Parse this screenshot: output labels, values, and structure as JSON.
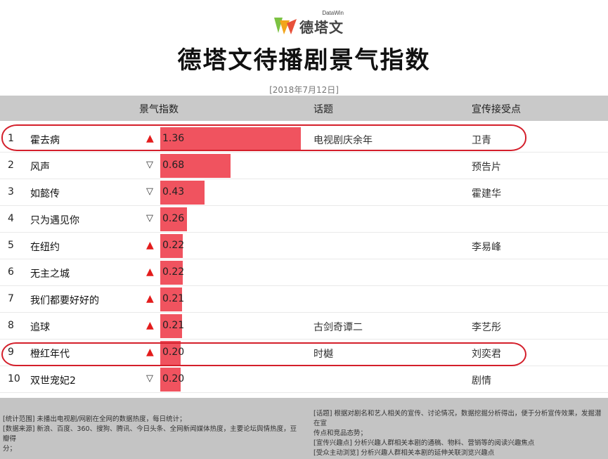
{
  "logo": {
    "brand": "德塔文",
    "sub": "DataWin"
  },
  "title": "德塔文待播剧景气指数",
  "date": "[2018年7月12日]",
  "headers": {
    "index": "景气指数",
    "topic": "话题",
    "promo": "宣传接受点"
  },
  "colors": {
    "bar": "#f0535f",
    "up_arrow": "#e31c1c",
    "highlight": "#d41f2b",
    "header_bg": "#c9c9c9",
    "footer_bg": "#c4c4c4"
  },
  "chart_data": {
    "type": "bar",
    "orientation": "horizontal",
    "categories": [
      "霍去病",
      "风声",
      "如懿传",
      "只为遇见你",
      "在纽约",
      "无主之城",
      "我们都要好好的",
      "追球",
      "橙红年代",
      "双世宠妃2"
    ],
    "values": [
      1.36,
      0.68,
      0.43,
      0.26,
      0.22,
      0.22,
      0.21,
      0.21,
      0.2,
      0.2
    ],
    "value_labels": [
      "1.36",
      "0.68",
      "0.43",
      "0.26",
      "0.22",
      "0.22",
      "0.21",
      "0.21",
      "0.20",
      "0.20"
    ],
    "xlim": [
      0,
      1.36
    ]
  },
  "rows": [
    {
      "rank": "1",
      "name": "霍去病",
      "trend": "▲",
      "dir": "up",
      "topic": "电视剧庆余年",
      "promo": "卫青"
    },
    {
      "rank": "2",
      "name": "风声",
      "trend": "▽",
      "dir": "down",
      "topic": "",
      "promo": "预告片"
    },
    {
      "rank": "3",
      "name": "如懿传",
      "trend": "▽",
      "dir": "down",
      "topic": "",
      "promo": "霍建华"
    },
    {
      "rank": "4",
      "name": "只为遇见你",
      "trend": "▽",
      "dir": "down",
      "topic": "",
      "promo": ""
    },
    {
      "rank": "5",
      "name": "在纽约",
      "trend": "▲",
      "dir": "up",
      "topic": "",
      "promo": "李易峰"
    },
    {
      "rank": "6",
      "name": "无主之城",
      "trend": "▲",
      "dir": "up",
      "topic": "",
      "promo": ""
    },
    {
      "rank": "7",
      "name": "我们都要好好的",
      "trend": "▲",
      "dir": "up",
      "topic": "",
      "promo": ""
    },
    {
      "rank": "8",
      "name": "追球",
      "trend": "▲",
      "dir": "up",
      "topic": "古剑奇谭二",
      "promo": "李艺彤"
    },
    {
      "rank": "9",
      "name": "橙红年代",
      "trend": "▲",
      "dir": "up",
      "topic": "时樾",
      "promo": "刘奕君"
    },
    {
      "rank": "10",
      "name": "双世宠妃2",
      "trend": "▽",
      "dir": "down",
      "topic": "",
      "promo": "剧情"
    }
  ],
  "footer": {
    "left": [
      "[统计范围] 未播出电视剧/网剧在全网的数据热度，每日统计；",
      "[数据来源] 新浪、百度、360、搜狗、腾讯、今日头条、全网新闻媒体热度，主要论坛舆情热度，豆瓣得",
      "分；"
    ],
    "right": [
      "[话题] 根据对剧名和艺人相关的宣传、讨论情况，数据挖掘分析得出，便于分析宣传效果，发掘潜在宣",
      "传点和竞品态势；",
      "[宣传兴趣点] 分析兴趣人群相关本剧的通稿、物料、营销等的阅读兴趣焦点",
      "[受众主动浏览] 分析兴趣人群相关本剧的延伸关联浏览兴趣点"
    ]
  }
}
